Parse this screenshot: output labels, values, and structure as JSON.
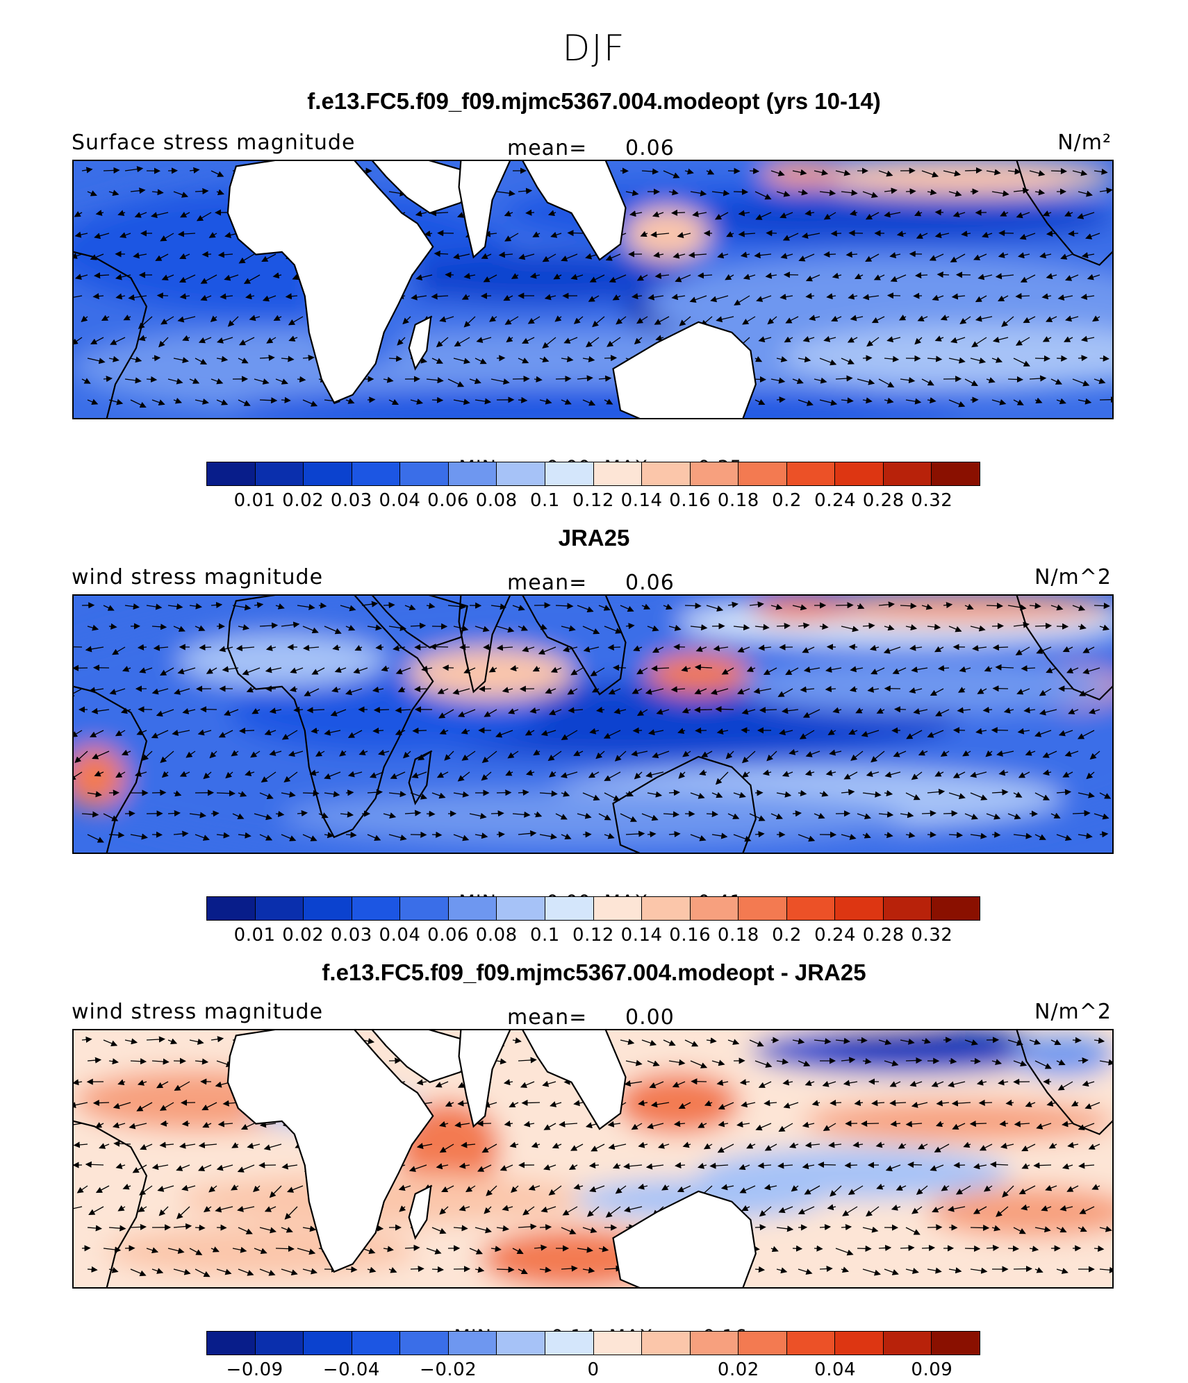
{
  "figure": {
    "supertitle": "DJF",
    "panels": [
      {
        "title": "f.e13.FC5.f09_f09.mjmc5367.004.modeopt (yrs 10-14)",
        "left_label": "Surface stress magnitude",
        "mean_text": "mean=",
        "mean_value": "0.06",
        "units": "N/m²",
        "min_label": "MIN =",
        "min_value": "0.00",
        "max_label": "MAX =",
        "max_value": "0.35",
        "colorbar_ticks": [
          "0.01",
          "0.02",
          "0.03",
          "0.04",
          "0.06",
          "0.08",
          "0.1",
          "0.12",
          "0.14",
          "0.16",
          "0.18",
          "0.2",
          "0.24",
          "0.28",
          "0.32"
        ]
      },
      {
        "title": "JRA25",
        "left_label": "wind stress magnitude",
        "mean_text": "mean=",
        "mean_value": "0.06",
        "units": "N/m^2",
        "min_label": "MIN =",
        "min_value": "0.00",
        "max_label": "MAX =",
        "max_value": "0.41",
        "colorbar_ticks": [
          "0.01",
          "0.02",
          "0.03",
          "0.04",
          "0.06",
          "0.08",
          "0.1",
          "0.12",
          "0.14",
          "0.16",
          "0.18",
          "0.2",
          "0.24",
          "0.28",
          "0.32"
        ]
      },
      {
        "title": "f.e13.FC5.f09_f09.mjmc5367.004.modeopt - JRA25",
        "left_label": "wind stress magnitude",
        "mean_text": "mean=",
        "mean_value": "0.00",
        "units": "N/m^2",
        "min_label": "MIN =",
        "min_value": "−0.14",
        "max_label": "MAX =",
        "max_value": "0.16",
        "colorbar_ticks": [
          "−0.09",
          "−0.04",
          "−0.02",
          "0",
          "0.02",
          "0.04",
          "0.09"
        ]
      }
    ]
  },
  "chart_data": [
    {
      "type": "heatmap",
      "title": "f.e13.FC5.f09_f09.mjmc5367.004.modeopt (yrs 10-14)",
      "variable": "Surface stress magnitude",
      "units": "N/m²",
      "mean": 0.06,
      "min": 0.0,
      "max": 0.35,
      "levels": [
        0.01,
        0.02,
        0.03,
        0.04,
        0.06,
        0.08,
        0.1,
        0.12,
        0.14,
        0.16,
        0.18,
        0.2,
        0.24,
        0.28,
        0.32
      ],
      "colors": [
        "#081d8a",
        "#0a2fad",
        "#0b42cf",
        "#1c56e3",
        "#3a6ee8",
        "#6e97f0",
        "#a6c2f7",
        "#d4e6fb",
        "#fde5d6",
        "#fbc6aa",
        "#f7a07e",
        "#f37a51",
        "#ec5127",
        "#dd3612",
        "#b8220a",
        "#8a1000"
      ]
    },
    {
      "type": "heatmap",
      "title": "JRA25",
      "variable": "wind stress magnitude",
      "units": "N/m^2",
      "mean": 0.06,
      "min": 0.0,
      "max": 0.41,
      "levels": [
        0.01,
        0.02,
        0.03,
        0.04,
        0.06,
        0.08,
        0.1,
        0.12,
        0.14,
        0.16,
        0.18,
        0.2,
        0.24,
        0.28,
        0.32
      ],
      "colors": [
        "#081d8a",
        "#0a2fad",
        "#0b42cf",
        "#1c56e3",
        "#3a6ee8",
        "#6e97f0",
        "#a6c2f7",
        "#d4e6fb",
        "#fde5d6",
        "#fbc6aa",
        "#f7a07e",
        "#f37a51",
        "#ec5127",
        "#dd3612",
        "#b8220a",
        "#8a1000"
      ]
    },
    {
      "type": "heatmap",
      "title": "f.e13.FC5.f09_f09.mjmc5367.004.modeopt - JRA25",
      "variable": "wind stress magnitude",
      "units": "N/m^2",
      "mean": 0.0,
      "min": -0.14,
      "max": 0.16,
      "levels": [
        -0.09,
        -0.06,
        -0.04,
        -0.03,
        -0.02,
        -0.01,
        -0.005,
        0,
        0.005,
        0.01,
        0.02,
        0.03,
        0.04,
        0.06,
        0.09
      ],
      "labeled_levels": [
        -0.09,
        -0.04,
        -0.02,
        0,
        0.02,
        0.04,
        0.09
      ],
      "colors": [
        "#081d8a",
        "#0a2fad",
        "#0b42cf",
        "#1c56e3",
        "#3a6ee8",
        "#6e97f0",
        "#a6c2f7",
        "#d4e6fb",
        "#fde5d6",
        "#fbc6aa",
        "#f7a07e",
        "#f37a51",
        "#ec5127",
        "#dd3612",
        "#b8220a",
        "#8a1000"
      ]
    }
  ]
}
